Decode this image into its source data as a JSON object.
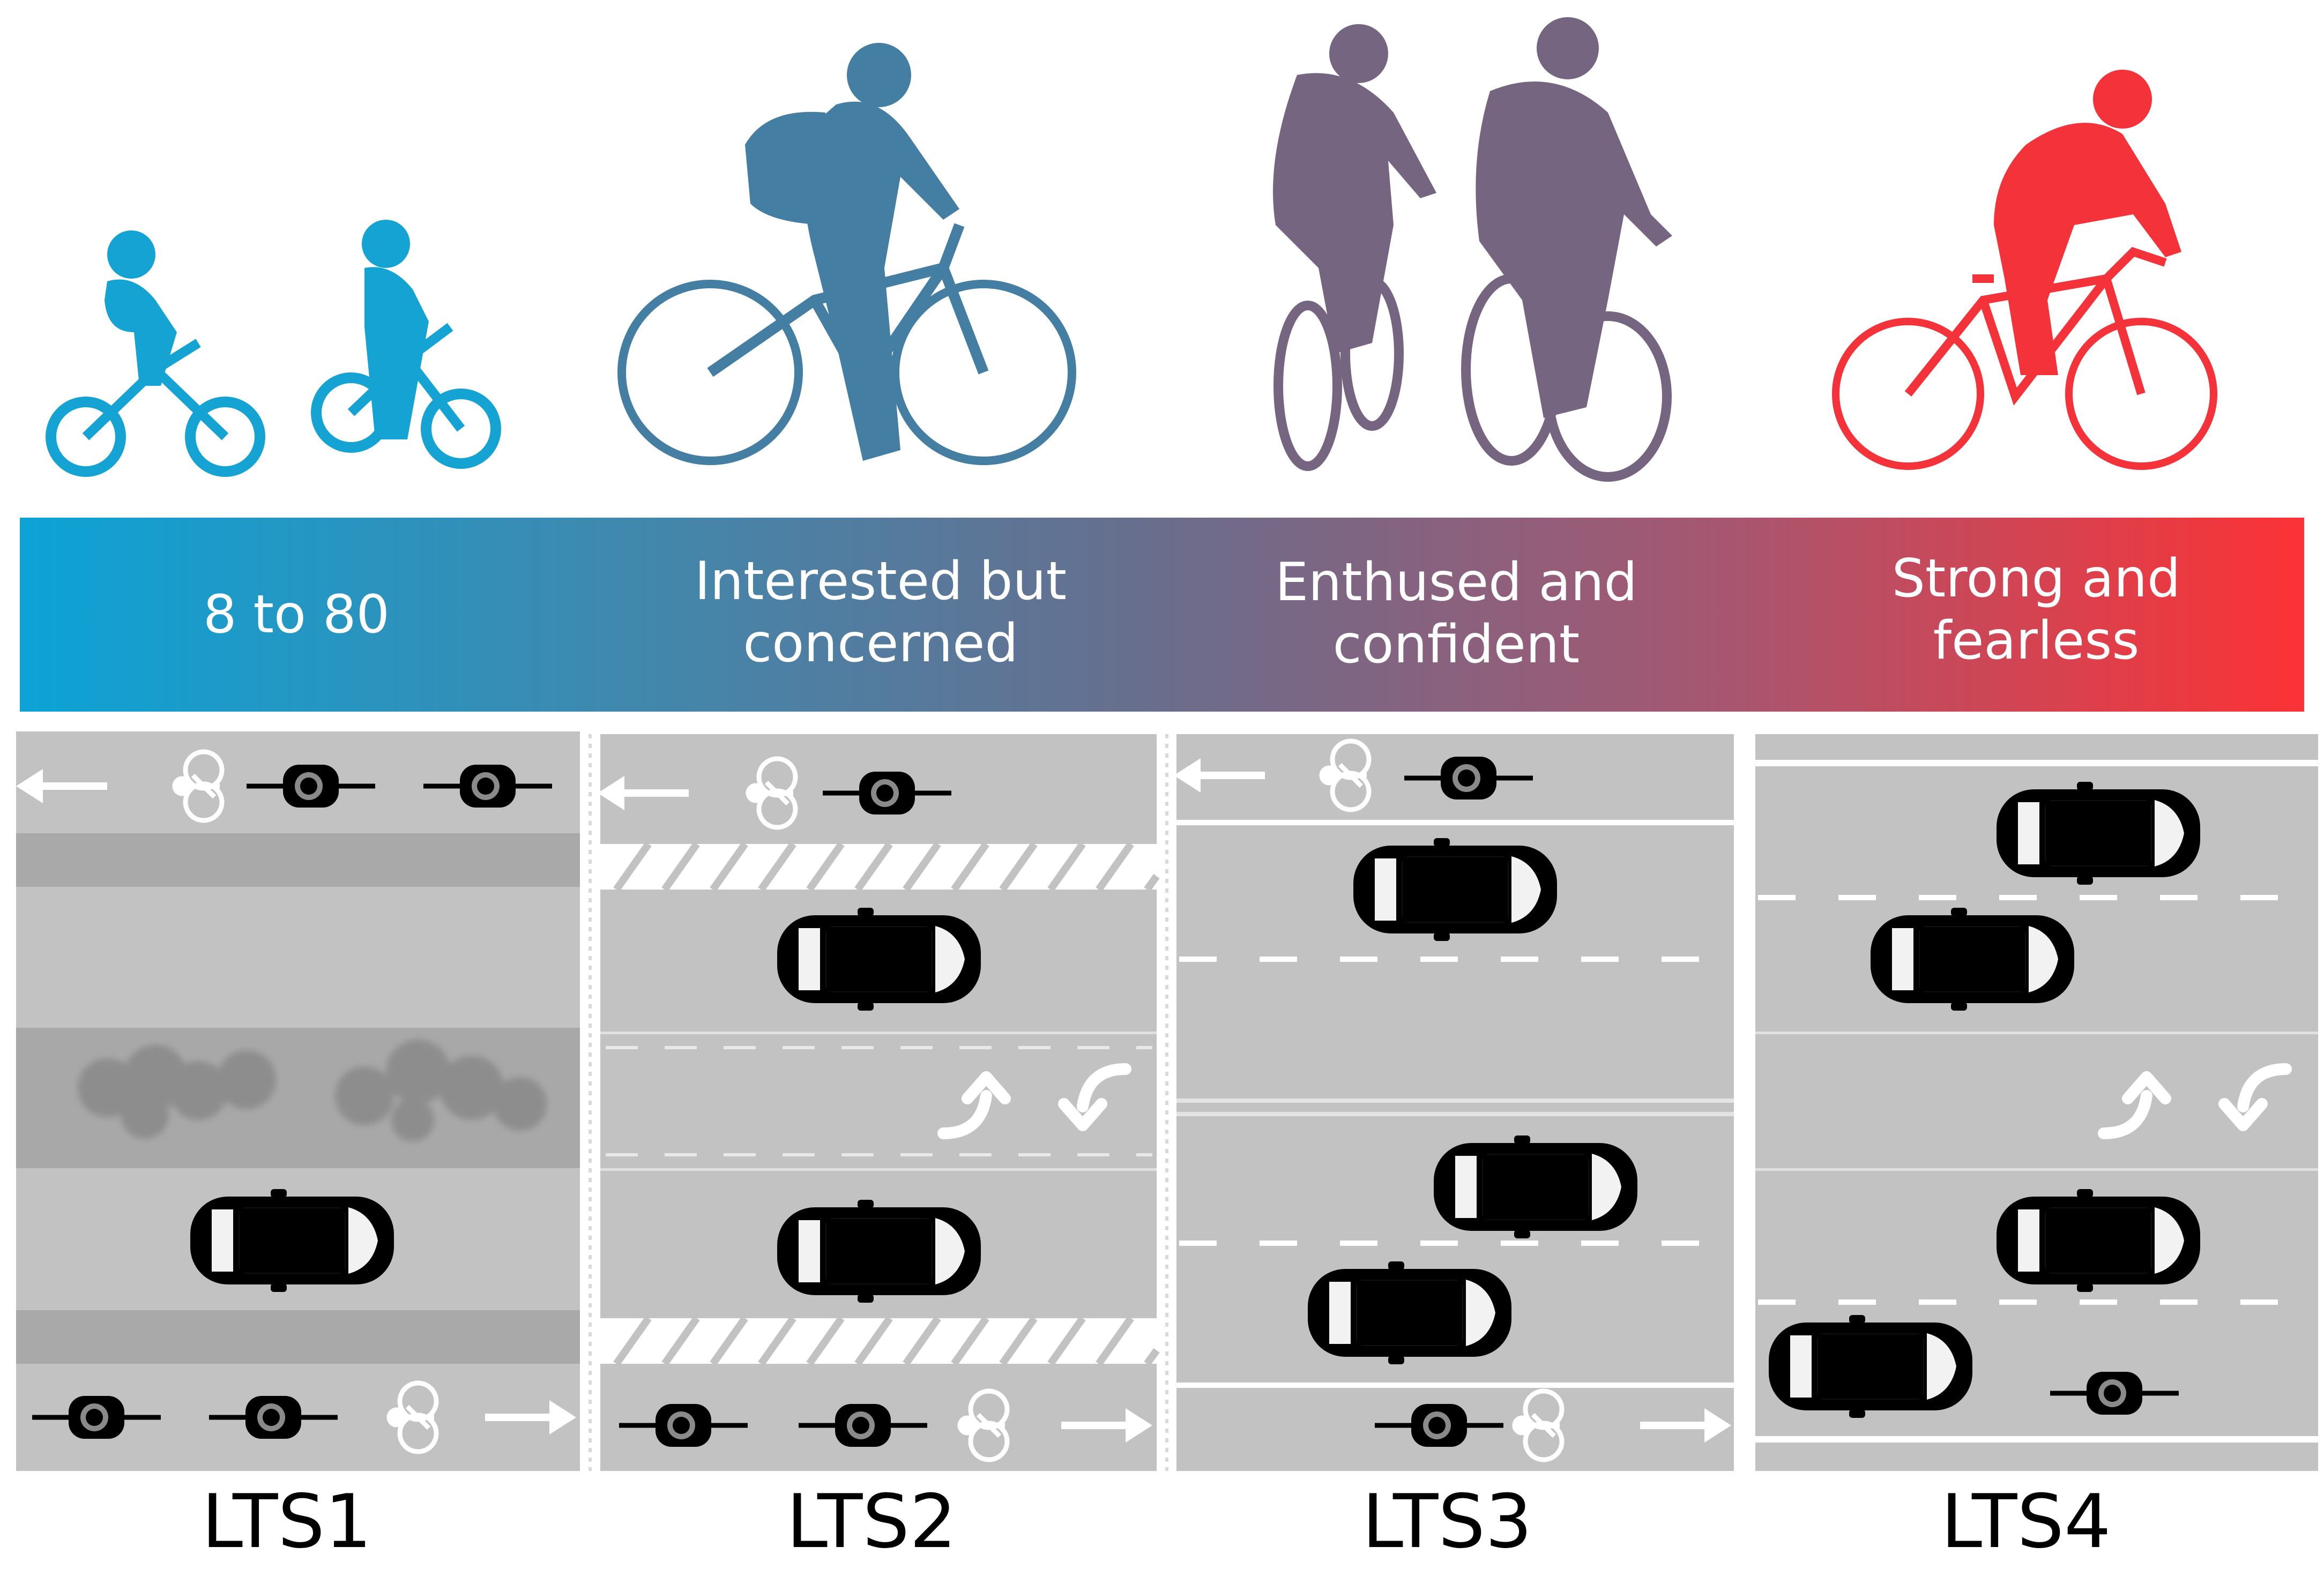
{
  "groups": [
    {
      "label": "8 to 80",
      "color": "#14a3d2"
    },
    {
      "label": "Interested but\nconcerned",
      "color": "#447ea3"
    },
    {
      "label": "Enthused and\nconfident",
      "color": "#766580"
    },
    {
      "label": "Strong and\nfearless",
      "color": "#f4323a"
    }
  ],
  "band_gradient": [
    "#0ca3d6",
    "#3d8ab0",
    "#6a6d8c",
    "#a85670",
    "#fc3235"
  ],
  "lts_labels": [
    "LTS1",
    "LTS2",
    "LTS3",
    "LTS4"
  ],
  "icons": [
    "child-cyclist-icon",
    "commuter-cyclist-icon",
    "adult-cyclists-icon",
    "road-cyclist-icon",
    "car-icon",
    "bicycle-marking-icon",
    "arrow-icon",
    "turn-arrow-icon",
    "tree-icon"
  ]
}
